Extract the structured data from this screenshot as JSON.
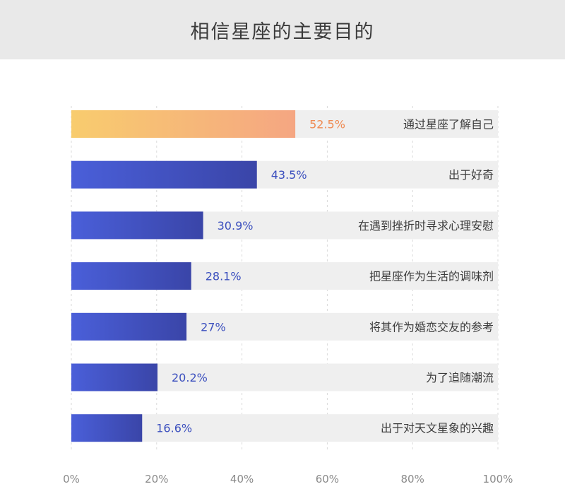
{
  "title": "相信星座的主要目的",
  "colors": {
    "highlight_start": "#f8cc6e",
    "highlight_end": "#f5a682",
    "highlight_text": "#ef8a52",
    "bar_start": "#4a5fd9",
    "bar_end": "#3a45a8",
    "bar_text": "#3b4fbe"
  },
  "chart_data": {
    "type": "bar",
    "orientation": "horizontal",
    "title": "相信星座的主要目的",
    "categories": [
      "通过星座了解自己",
      "出于好奇",
      "在遇到挫折时寻求心理安慰",
      "把星座作为生活的调味剂",
      "将其作为婚恋交友的参考",
      "为了追随潮流",
      "出于对天文星象的兴趣"
    ],
    "values": [
      52.5,
      43.5,
      30.9,
      28.1,
      27,
      20.2,
      16.6
    ],
    "value_labels": [
      "52.5%",
      "43.5%",
      "30.9%",
      "28.1%",
      "27%",
      "20.2%",
      "16.6%"
    ],
    "highlight_index": 0,
    "xlim": [
      0,
      100
    ],
    "xticks": [
      0,
      20,
      40,
      60,
      80,
      100
    ],
    "xtick_labels": [
      "0%",
      "20%",
      "40%",
      "60%",
      "80%",
      "100%"
    ],
    "grid": true
  }
}
